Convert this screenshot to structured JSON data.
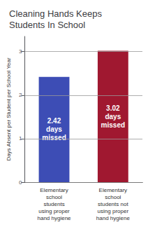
{
  "chart_data": {
    "type": "bar",
    "title": "Cleaning Hands Keeps\nStudents In School",
    "categories": [
      "Elementary\nschool\nstudents\nusing proper\nhand hygiene",
      "Elementary\nschool\nstudents not\nusing proper\nhand hygiene"
    ],
    "values": [
      2.42,
      3.02
    ],
    "colors": [
      "#3d4db5",
      "#a01830"
    ],
    "data_labels": true,
    "value_labels": [
      "2.42\ndays\nmissed",
      "3.02\ndays\nmissed"
    ],
    "ylabel": "Days Absent per Student per School Year",
    "ylim": [
      0,
      3.35
    ],
    "yticks": [
      0,
      1,
      2,
      3
    ],
    "grid": true
  }
}
